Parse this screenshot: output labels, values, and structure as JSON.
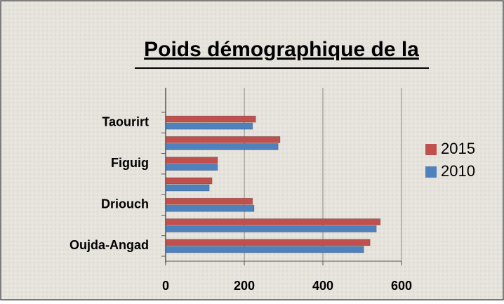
{
  "chart_data": {
    "type": "barh",
    "title": "Poids démographique de la",
    "categories": [
      "Oujda-Angad",
      null,
      "Driouch",
      null,
      "Figuig",
      null,
      "Taourirt"
    ],
    "series": [
      {
        "name": "2015",
        "color": "#c0504d",
        "values": [
          520,
          546,
          221,
          118,
          132,
          291,
          229
        ]
      },
      {
        "name": "2010",
        "color": "#4f81bd",
        "values": [
          504,
          536,
          225,
          111,
          132,
          286,
          221
        ]
      }
    ],
    "xlim": [
      0,
      600
    ],
    "xticks": [
      0,
      200,
      400,
      600
    ],
    "grid": true,
    "legend": "right"
  }
}
